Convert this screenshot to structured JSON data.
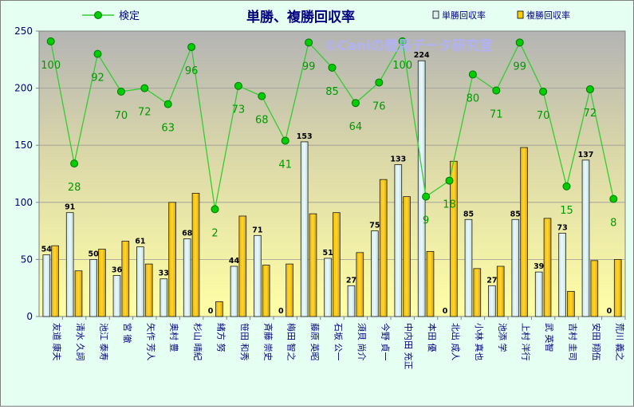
{
  "chart_data": {
    "type": "bar",
    "title": "単勝、複勝回収率",
    "watermark": "©Caniの競馬データ研究室",
    "categories": [
      "友道 康夫",
      "清水 久詞",
      "池江 泰寿",
      "宮 徹",
      "矢作 芳人",
      "奥村 豊",
      "杉山 晴紀",
      "緒方 努",
      "笹田 和秀",
      "斉藤 崇史",
      "梅田 智之",
      "藤原 英昭",
      "石坂 公一",
      "須貝 尚介",
      "今野 貞一",
      "中内田 充正",
      "本田 優",
      "北出 成人",
      "小林 真也",
      "池添 学",
      "上村 洋行",
      "武 英智",
      "吉村 圭司",
      "安田 翔伍",
      "荒川 義之"
    ],
    "series": [
      {
        "name": "単勝回収率",
        "kind": "bar",
        "color": "#dff0f3",
        "values": [
          54,
          91,
          50,
          36,
          61,
          33,
          68,
          0,
          44,
          71,
          0,
          153,
          51,
          27,
          75,
          133,
          224,
          0,
          85,
          27,
          85,
          39,
          73,
          137,
          0
        ]
      },
      {
        "name": "複勝回収率",
        "kind": "bar",
        "color": "#ffcc00",
        "values": [
          62,
          40,
          59,
          66,
          46,
          100,
          108,
          13,
          88,
          45,
          46,
          90,
          91,
          56,
          120,
          105,
          57,
          136,
          42,
          44,
          148,
          86,
          22,
          49,
          50
        ]
      },
      {
        "name": "検定",
        "kind": "line",
        "color": "#33cc33",
        "values": [
          241,
          134,
          230,
          197,
          200,
          186,
          236,
          94,
          202,
          193,
          154,
          240,
          218,
          187,
          205,
          241,
          105,
          119,
          212,
          198,
          240,
          197,
          114,
          199,
          103
        ],
        "labels": [
          "100",
          "28",
          "92",
          "70",
          "72",
          "63",
          "96",
          "2",
          "73",
          "68",
          "41",
          "99",
          "85",
          "64",
          "76",
          "100",
          "9",
          "18",
          "80",
          "71",
          "99",
          "70",
          "15",
          "72",
          "8"
        ]
      }
    ],
    "ylim": [
      0,
      250
    ],
    "yticks": [
      "0",
      "50",
      "100",
      "150",
      "200",
      "250"
    ],
    "legend": "top"
  }
}
